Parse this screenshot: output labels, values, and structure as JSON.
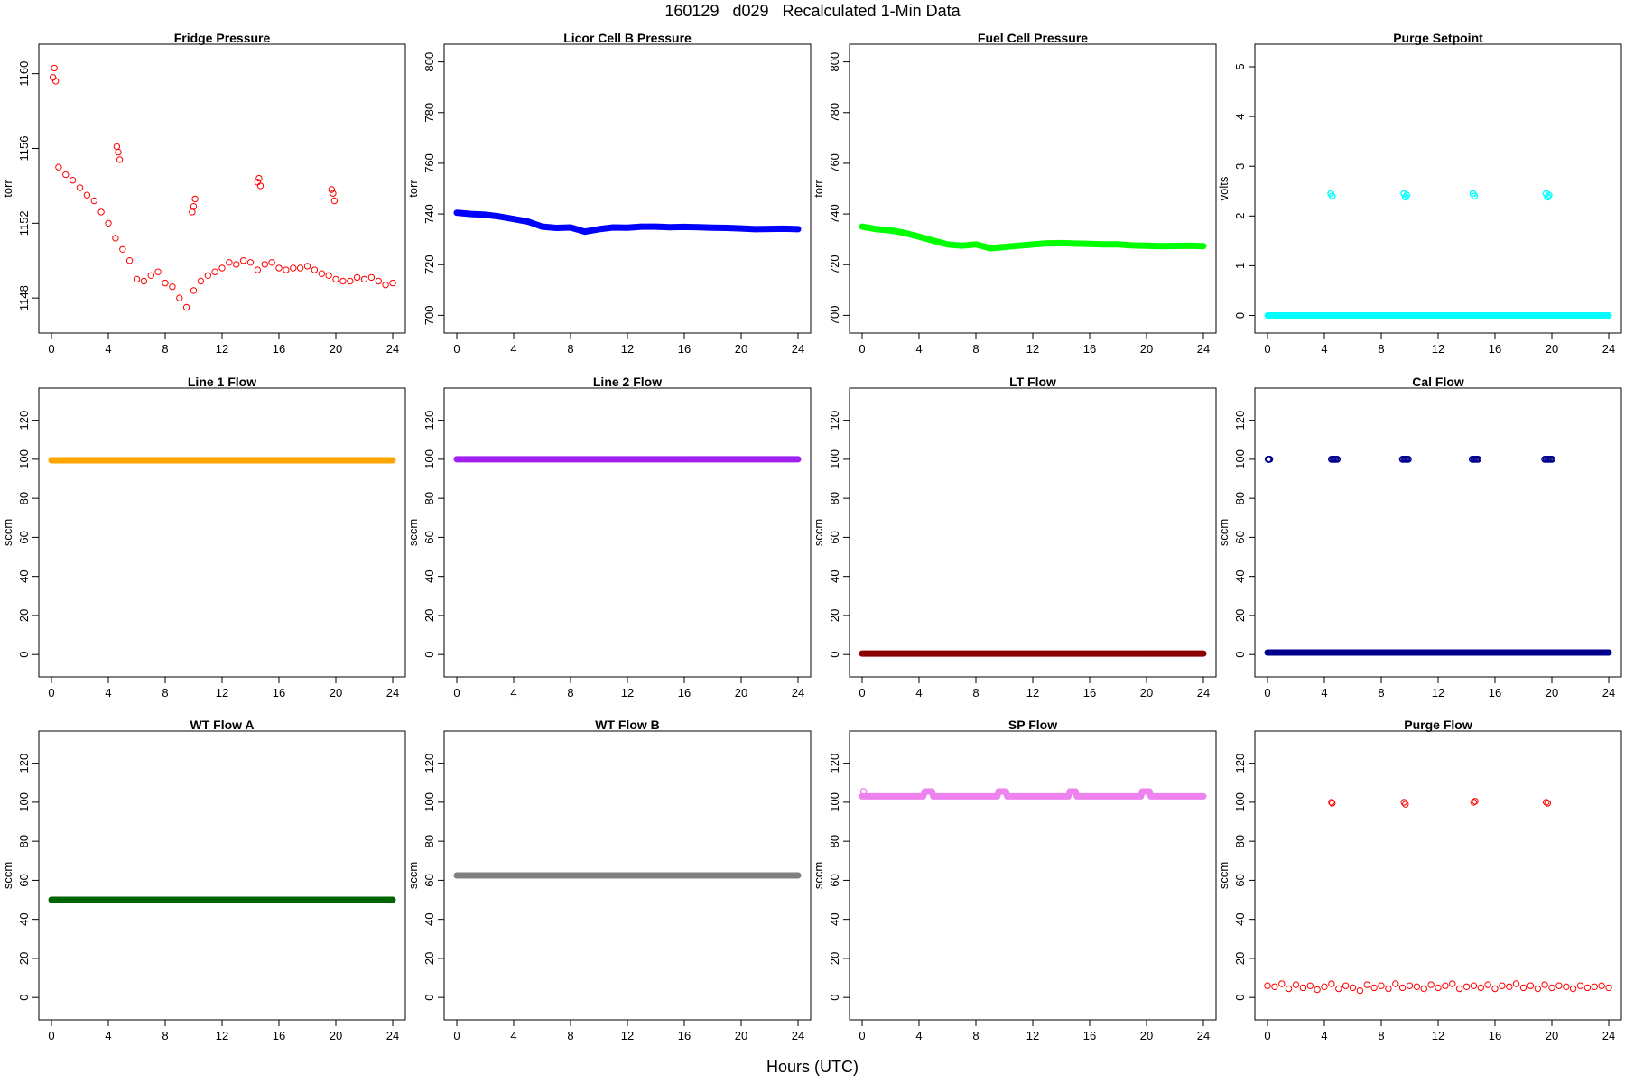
{
  "title": "160129   d029   Recalculated 1-Min Data",
  "xlabel": "Hours (UTC)",
  "chart_data": [
    {
      "type": "scatter",
      "title": "Fridge Pressure",
      "ylabel": "torr",
      "color": "#ff0000",
      "xlim": [
        0,
        24
      ],
      "ylim": [
        1146.8,
        1160.9
      ],
      "xticks": [
        0,
        4,
        8,
        12,
        16,
        20,
        24
      ],
      "yticks": [
        1148,
        1152,
        1156,
        1160
      ],
      "x": [
        0.1,
        0.2,
        0.3,
        0.5,
        1,
        1.5,
        2,
        2.5,
        3,
        3.5,
        4,
        4.5,
        5,
        5.5,
        6,
        6.5,
        7,
        7.5,
        8,
        8.5,
        9,
        9.5,
        10,
        10.5,
        11,
        11.5,
        12,
        12.5,
        13,
        13.5,
        14,
        14.5,
        15,
        15.5,
        16,
        16.5,
        17,
        17.5,
        18,
        18.5,
        19,
        19.5,
        20,
        20.5,
        21,
        21.5,
        22,
        22.5,
        23,
        23.5,
        24,
        4.6,
        4.7,
        4.8,
        9.9,
        10,
        10.1,
        14.5,
        14.6,
        14.7,
        19.7,
        19.8,
        19.9
      ],
      "y": [
        1159.8,
        1160.3,
        1159.6,
        1155,
        1154.6,
        1154.3,
        1153.9,
        1153.5,
        1153.2,
        1152.6,
        1152,
        1151.2,
        1150.6,
        1150,
        1149,
        1148.9,
        1149.2,
        1149.4,
        1148.8,
        1148.6,
        1148,
        1147.5,
        1148.4,
        1148.9,
        1149.2,
        1149.4,
        1149.6,
        1149.9,
        1149.8,
        1150,
        1149.9,
        1149.5,
        1149.8,
        1149.9,
        1149.6,
        1149.5,
        1149.6,
        1149.6,
        1149.7,
        1149.5,
        1149.3,
        1149.2,
        1149,
        1148.9,
        1148.9,
        1149.1,
        1149,
        1149.1,
        1148.9,
        1148.7,
        1148.8,
        1156.1,
        1155.8,
        1155.4,
        1152.6,
        1152.9,
        1153.3,
        1154.2,
        1154.4,
        1154,
        1153.8,
        1153.6,
        1153.2
      ]
    },
    {
      "type": "line",
      "title": "Licor Cell B Pressure",
      "ylabel": "torr",
      "color": "#0000ff",
      "xlim": [
        0,
        24
      ],
      "ylim": [
        698,
        802
      ],
      "xticks": [
        0,
        4,
        8,
        12,
        16,
        20,
        24
      ],
      "yticks": [
        700,
        720,
        740,
        760,
        780,
        800
      ],
      "x": [
        0,
        1,
        2,
        3,
        4,
        5,
        6,
        7,
        8,
        9,
        10,
        11,
        12,
        13,
        14,
        15,
        16,
        17,
        18,
        19,
        20,
        21,
        22,
        23,
        24
      ],
      "y": [
        740.5,
        740,
        739.7,
        739,
        738,
        737,
        735,
        734.5,
        734.7,
        733,
        734,
        734.7,
        734.6,
        735,
        735,
        734.8,
        734.9,
        734.8,
        734.6,
        734.5,
        734.3,
        734,
        734.1,
        734.2,
        734
      ]
    },
    {
      "type": "line",
      "title": "Fuel Cell Pressure",
      "ylabel": "torr",
      "color": "#00ff00",
      "xlim": [
        0,
        24
      ],
      "ylim": [
        698,
        802
      ],
      "xticks": [
        0,
        4,
        8,
        12,
        16,
        20,
        24
      ],
      "yticks": [
        700,
        720,
        740,
        760,
        780,
        800
      ],
      "x": [
        0,
        1,
        2,
        3,
        4,
        5,
        6,
        7,
        8,
        9,
        10,
        11,
        12,
        13,
        14,
        15,
        16,
        17,
        18,
        19,
        20,
        21,
        22,
        23,
        24
      ],
      "y": [
        735,
        734,
        733.5,
        732.5,
        731,
        729.5,
        728,
        727.5,
        728,
        726.5,
        727,
        727.5,
        728,
        728.4,
        728.5,
        728.3,
        728.2,
        728,
        728,
        727.6,
        727.5,
        727.3,
        727.4,
        727.5,
        727.3
      ]
    },
    {
      "type": "line",
      "title": "Purge Setpoint",
      "ylabel": "volts",
      "color": "#00ffff",
      "xlim": [
        0,
        24
      ],
      "ylim": [
        -0.1,
        5.2
      ],
      "xticks": [
        0,
        4,
        8,
        12,
        16,
        20,
        24
      ],
      "yticks": [
        0,
        1,
        2,
        3,
        4,
        5
      ],
      "x": [
        0,
        4.5,
        9.7,
        14.5,
        19.7,
        24
      ],
      "y": [
        0,
        0,
        0,
        0,
        0,
        0
      ],
      "extra_x": [
        4.45,
        4.55,
        9.6,
        9.7,
        9.8,
        14.45,
        14.55,
        19.6,
        19.7,
        19.8
      ],
      "extra_y": [
        2.45,
        2.4,
        2.45,
        2.38,
        2.42,
        2.45,
        2.4,
        2.45,
        2.38,
        2.42
      ]
    },
    {
      "type": "line",
      "title": "Line 1 Flow",
      "ylabel": "sccm",
      "color": "#ffa500",
      "xlim": [
        0,
        24
      ],
      "ylim": [
        -5,
        130
      ],
      "xticks": [
        0,
        4,
        8,
        12,
        16,
        20,
        24
      ],
      "yticks": [
        0,
        20,
        40,
        60,
        80,
        100,
        120
      ],
      "x": [
        0,
        24
      ],
      "y": [
        99.5,
        99.5
      ]
    },
    {
      "type": "line",
      "title": "Line 2 Flow",
      "ylabel": "sccm",
      "color": "#a020f0",
      "xlim": [
        0,
        24
      ],
      "ylim": [
        -5,
        130
      ],
      "xticks": [
        0,
        4,
        8,
        12,
        16,
        20,
        24
      ],
      "yticks": [
        0,
        20,
        40,
        60,
        80,
        100,
        120
      ],
      "x": [
        0,
        24
      ],
      "y": [
        100,
        100
      ]
    },
    {
      "type": "line",
      "title": "LT Flow",
      "ylabel": "sccm",
      "color": "#8b0000",
      "xlim": [
        0,
        24
      ],
      "ylim": [
        -5,
        130
      ],
      "xticks": [
        0,
        4,
        8,
        12,
        16,
        20,
        24
      ],
      "yticks": [
        0,
        20,
        40,
        60,
        80,
        100,
        120
      ],
      "x": [
        0,
        24
      ],
      "y": [
        0.5,
        0.5
      ]
    },
    {
      "type": "line",
      "title": "Cal Flow",
      "ylabel": "sccm",
      "color": "#00008b",
      "xlim": [
        0,
        24
      ],
      "ylim": [
        -5,
        130
      ],
      "xticks": [
        0,
        4,
        8,
        12,
        16,
        20,
        24
      ],
      "yticks": [
        0,
        20,
        40,
        60,
        80,
        100,
        120
      ],
      "x": [
        0,
        24
      ],
      "y": [
        1,
        1
      ],
      "extra_x": [
        0.05,
        0.1,
        0.15,
        4.5,
        4.6,
        4.7,
        4.8,
        4.9,
        9.5,
        9.6,
        9.7,
        9.8,
        9.9,
        14.4,
        14.5,
        14.6,
        14.7,
        14.8,
        19.5,
        19.6,
        19.7,
        19.8,
        19.9,
        20
      ],
      "extra_y": [
        100,
        100,
        100,
        100,
        100,
        100,
        100,
        100,
        100,
        100,
        100,
        100,
        100,
        100,
        100,
        100,
        100,
        100,
        100,
        100,
        100,
        100,
        100,
        100
      ]
    },
    {
      "type": "line",
      "title": "WT Flow A",
      "ylabel": "sccm",
      "color": "#006400",
      "xlim": [
        0,
        24
      ],
      "ylim": [
        -5,
        130
      ],
      "xticks": [
        0,
        4,
        8,
        12,
        16,
        20,
        24
      ],
      "yticks": [
        0,
        20,
        40,
        60,
        80,
        100,
        120
      ],
      "x": [
        0,
        24
      ],
      "y": [
        50,
        50
      ]
    },
    {
      "type": "line",
      "title": "WT Flow B",
      "ylabel": "sccm",
      "color": "#808080",
      "xlim": [
        0,
        24
      ],
      "ylim": [
        -5,
        130
      ],
      "xticks": [
        0,
        4,
        8,
        12,
        16,
        20,
        24
      ],
      "yticks": [
        0,
        20,
        40,
        60,
        80,
        100,
        120
      ],
      "x": [
        0,
        24
      ],
      "y": [
        62.5,
        62.5
      ]
    },
    {
      "type": "line",
      "title": "SP Flow",
      "ylabel": "sccm",
      "color": "#ee82ee",
      "xlim": [
        0,
        24
      ],
      "ylim": [
        -5,
        130
      ],
      "xticks": [
        0,
        4,
        8,
        12,
        16,
        20,
        24
      ],
      "yticks": [
        0,
        20,
        40,
        60,
        80,
        100,
        120
      ],
      "x": [
        0,
        4.3,
        4.4,
        4.9,
        5,
        9.5,
        9.6,
        10.1,
        10.2,
        14.5,
        14.6,
        15,
        15.1,
        19.6,
        19.7,
        20.2,
        20.3,
        24
      ],
      "y": [
        103,
        103,
        105.5,
        105.5,
        103,
        103,
        105.5,
        105.5,
        103,
        103,
        105.5,
        105.5,
        103,
        103,
        105.5,
        105.5,
        103,
        103
      ],
      "extra_x": [
        0.1
      ],
      "extra_y": [
        105.5
      ]
    },
    {
      "type": "scatter",
      "title": "Purge Flow",
      "ylabel": "sccm",
      "color": "#ff0000",
      "xlim": [
        0,
        24
      ],
      "ylim": [
        -5,
        130
      ],
      "xticks": [
        0,
        4,
        8,
        12,
        16,
        20,
        24
      ],
      "yticks": [
        0,
        20,
        40,
        60,
        80,
        100,
        120
      ],
      "x": [
        0,
        0.5,
        1,
        1.5,
        2,
        2.5,
        3,
        3.5,
        4,
        4.5,
        5,
        5.5,
        6,
        6.5,
        7,
        7.5,
        8,
        8.5,
        9,
        9.5,
        10,
        10.5,
        11,
        11.5,
        12,
        12.5,
        13,
        13.5,
        14,
        14.5,
        15,
        15.5,
        16,
        16.5,
        17,
        17.5,
        18,
        18.5,
        19,
        19.5,
        20,
        20.5,
        21,
        21.5,
        22,
        22.5,
        23,
        23.5,
        24,
        4.5,
        4.55,
        9.6,
        9.7,
        14.5,
        14.6,
        19.6,
        19.7
      ],
      "y": [
        6,
        5.5,
        7,
        4.5,
        6.5,
        5,
        6,
        4,
        5.5,
        7,
        4.5,
        6,
        5,
        3.5,
        6.5,
        5,
        6,
        4.5,
        7,
        5,
        6,
        5.5,
        4.5,
        6.5,
        5,
        6,
        7,
        4.5,
        5.5,
        6,
        5,
        6.5,
        4.5,
        6,
        5.5,
        7,
        5,
        6,
        4.5,
        6.5,
        5,
        6,
        5.5,
        4.5,
        6,
        5,
        5.5,
        6,
        5,
        100,
        99.5,
        100,
        99,
        100,
        100.5,
        100,
        99.5
      ]
    }
  ]
}
